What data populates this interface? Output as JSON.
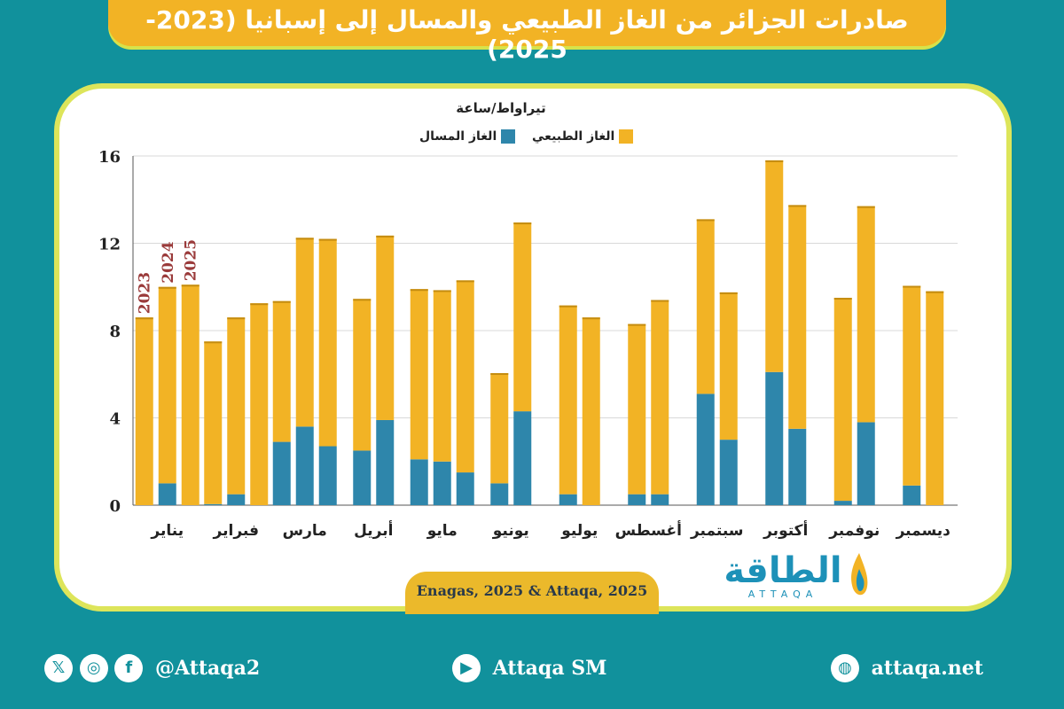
{
  "header": {
    "title": "صادرات الجزائر من الغاز الطبيعي والمسال إلى إسبانيا (2023-2025)"
  },
  "legend": {
    "unit": "تيراواط/ساعة",
    "natural_gas": "الغاز الطبيعي",
    "lng": "الغاز المسال"
  },
  "colors": {
    "natural_gas": "#f2b325",
    "lng": "#2e86ab",
    "background": "#11919c",
    "card_border": "#dde55a"
  },
  "source": "Enagas, 2025 & Attaqa, 2025",
  "logo": {
    "arabic": "الطاقة",
    "latin": "ATTAQA"
  },
  "footer": {
    "social_handle": "@Attaqa2",
    "youtube": "Attaqa SM",
    "website": "attaqa.net",
    "icons": [
      "x-icon",
      "instagram-icon",
      "facebook-icon",
      "youtube-icon",
      "globe-icon"
    ]
  },
  "chart_data": {
    "type": "bar",
    "stacked": true,
    "ylabel": "تيراواط/ساعة",
    "ylim": [
      0,
      16
    ],
    "yticks": [
      0,
      4,
      8,
      12,
      16
    ],
    "grid": true,
    "year_labels": [
      "2023",
      "2024",
      "2025"
    ],
    "categories": [
      "يناير",
      "فبراير",
      "مارس",
      "أبريل",
      "مايو",
      "يونيو",
      "يوليو",
      "أغسطس",
      "سبتمبر",
      "أكتوبر",
      "نوفمبر",
      "ديسمبر"
    ],
    "series": [
      {
        "name": "الغاز المسال",
        "values": [
          [
            0,
            1.0,
            0
          ],
          [
            0.05,
            0.5,
            0
          ],
          [
            2.9,
            3.6,
            2.7
          ],
          [
            2.5,
            3.9,
            null
          ],
          [
            2.1,
            2.0,
            1.5
          ],
          [
            1.0,
            4.3,
            null
          ],
          [
            0.5,
            0,
            null
          ],
          [
            0.5,
            0.5,
            null
          ],
          [
            5.1,
            3.0,
            null
          ],
          [
            6.1,
            3.5,
            null
          ],
          [
            0.2,
            3.8,
            null
          ],
          [
            0.9,
            0,
            null
          ]
        ]
      },
      {
        "name": "الغاز الطبيعي",
        "values": [
          [
            8.6,
            9.0,
            10.1
          ],
          [
            7.45,
            8.1,
            9.25
          ],
          [
            6.45,
            8.65,
            9.5
          ],
          [
            6.95,
            8.45,
            null
          ],
          [
            7.8,
            7.85,
            8.8
          ],
          [
            5.05,
            8.65,
            null
          ],
          [
            8.65,
            8.6,
            null
          ],
          [
            7.8,
            8.9,
            null
          ],
          [
            8.0,
            6.75,
            null
          ],
          [
            9.7,
            10.25,
            null
          ],
          [
            9.3,
            9.9,
            null
          ],
          [
            9.15,
            9.8,
            null
          ]
        ]
      }
    ]
  }
}
